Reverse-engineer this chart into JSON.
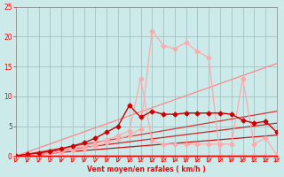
{
  "bg_color": "#cceaea",
  "grid_color": "#99bbbb",
  "xlabel": "Vent moyen/en rafales ( km/h )",
  "xlim": [
    0,
    23
  ],
  "ylim": [
    0,
    25
  ],
  "xticks": [
    0,
    1,
    2,
    3,
    4,
    5,
    6,
    7,
    8,
    9,
    10,
    11,
    12,
    13,
    14,
    15,
    16,
    17,
    18,
    19,
    20,
    21,
    22,
    23
  ],
  "yticks": [
    0,
    5,
    10,
    15,
    20,
    25
  ],
  "line_lightest": {
    "x": [
      0,
      1,
      2,
      3,
      4,
      5,
      6,
      7,
      8,
      9,
      10,
      11,
      12,
      13,
      14,
      15,
      16,
      17,
      18,
      19,
      20,
      21,
      22,
      23
    ],
    "y": [
      0,
      0.2,
      0.3,
      0.5,
      0.7,
      1.0,
      1.3,
      1.7,
      2.2,
      2.8,
      3.5,
      4.5,
      21,
      18.5,
      18,
      19,
      17.5,
      16.5,
      0,
      0,
      0,
      0,
      0,
      0
    ],
    "color": "#ffaaaa",
    "lw": 0.9,
    "ms": 2.5
  },
  "line_medium": {
    "x": [
      0,
      1,
      2,
      3,
      4,
      5,
      6,
      7,
      8,
      9,
      10,
      11,
      12,
      13,
      14,
      15,
      16,
      17,
      18,
      19,
      20,
      21,
      22,
      23
    ],
    "y": [
      0,
      0.2,
      0.4,
      0.6,
      0.9,
      1.2,
      1.6,
      2.1,
      2.7,
      3.4,
      4.2,
      13,
      2.5,
      2.0,
      2.0,
      2.0,
      2.0,
      2.0,
      2.0,
      2.0,
      13,
      2.0,
      3.0,
      0.2
    ],
    "color": "#ffaaaa",
    "lw": 0.9,
    "ms": 2.5
  },
  "line_dark": {
    "x": [
      0,
      1,
      2,
      3,
      4,
      5,
      6,
      7,
      8,
      9,
      10,
      11,
      12,
      13,
      14,
      15,
      16,
      17,
      18,
      19,
      20,
      21,
      22,
      23
    ],
    "y": [
      0,
      0.3,
      0.5,
      0.8,
      1.2,
      1.7,
      2.2,
      3.0,
      4.0,
      5.0,
      8.5,
      6.5,
      7.5,
      7.0,
      7.0,
      7.2,
      7.2,
      7.2,
      7.2,
      7.0,
      6.0,
      5.5,
      5.8,
      4.0
    ],
    "color": "#cc0000",
    "lw": 1.0,
    "ms": 2.5
  },
  "straight_lines": [
    {
      "x0": 0,
      "x1": 23,
      "y0": 0,
      "y1": 15.5,
      "color": "#ff8888",
      "lw": 0.9
    },
    {
      "x0": 0,
      "x1": 23,
      "y0": 0,
      "y1": 7.5,
      "color": "#dd3333",
      "lw": 0.9
    },
    {
      "x0": 0,
      "x1": 23,
      "y0": 0,
      "y1": 5.5,
      "color": "#cc2222",
      "lw": 0.9
    },
    {
      "x0": 0,
      "x1": 23,
      "y0": 0,
      "y1": 3.5,
      "color": "#cc1111",
      "lw": 0.9
    }
  ]
}
